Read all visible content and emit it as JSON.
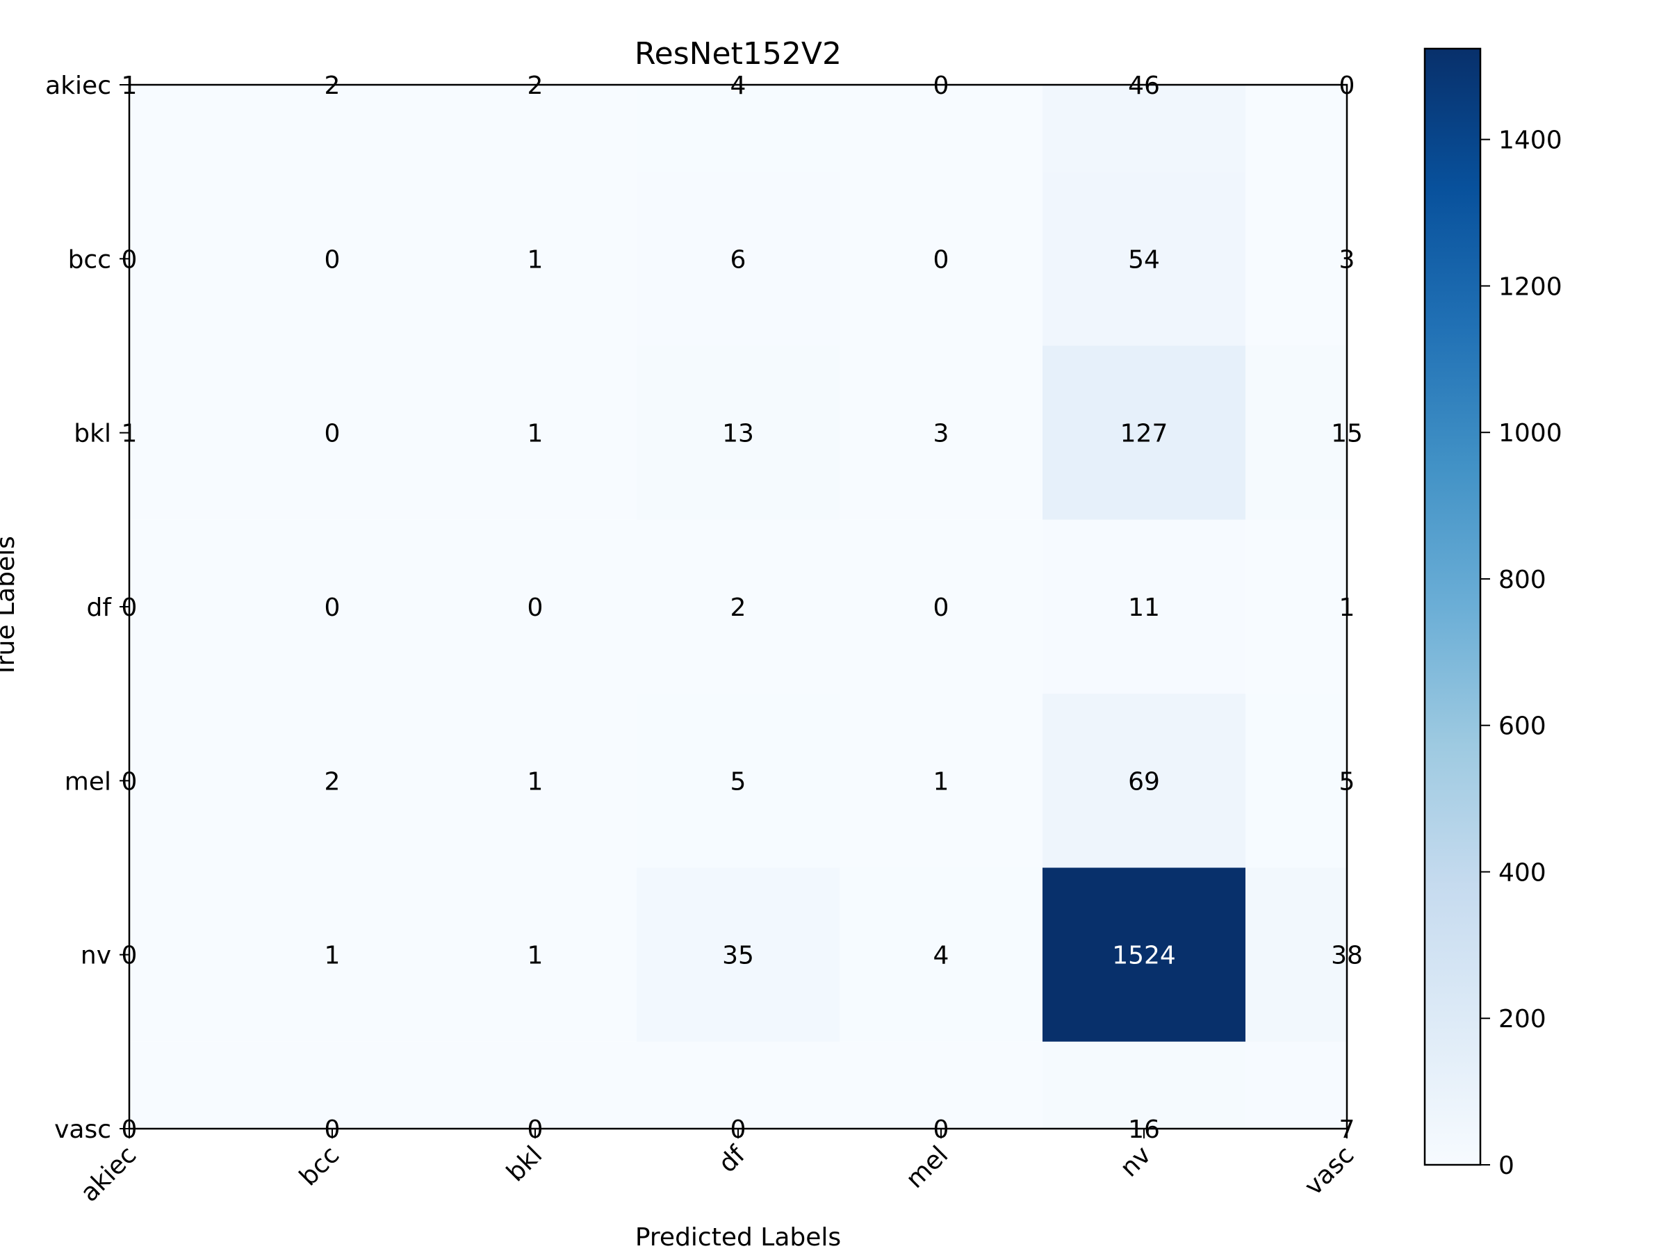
{
  "chart_data": {
    "type": "heatmap",
    "title": "ResNet152V2",
    "xlabel": "Predicted Labels",
    "ylabel": "True Labels",
    "x_categories": [
      "akiec",
      "bcc",
      "bkl",
      "df",
      "mel",
      "nv",
      "vasc"
    ],
    "y_categories": [
      "akiec",
      "bcc",
      "bkl",
      "df",
      "mel",
      "nv",
      "vasc"
    ],
    "values": [
      [
        1,
        2,
        2,
        4,
        0,
        46,
        0
      ],
      [
        0,
        0,
        1,
        6,
        0,
        54,
        3
      ],
      [
        1,
        0,
        1,
        13,
        3,
        127,
        15
      ],
      [
        0,
        0,
        0,
        2,
        0,
        11,
        1
      ],
      [
        0,
        2,
        1,
        5,
        1,
        69,
        5
      ],
      [
        0,
        1,
        1,
        35,
        4,
        1524,
        38
      ],
      [
        0,
        0,
        0,
        0,
        0,
        16,
        7
      ]
    ],
    "colormap": "Blues",
    "colorbar": {
      "min": 0,
      "max": 1524,
      "ticks": [
        0,
        200,
        400,
        600,
        800,
        1000,
        1200,
        1400
      ]
    },
    "grid": false
  }
}
